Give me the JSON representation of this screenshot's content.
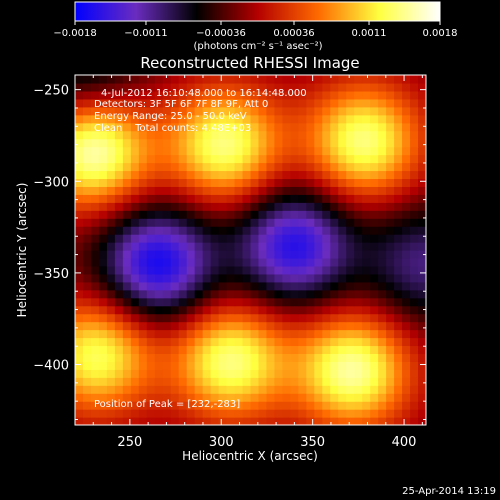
{
  "chart_data": {
    "type": "heatmap",
    "title": "Reconstructed RHESSI Image",
    "xlabel": "Heliocentric X (arcsec)",
    "ylabel": "Heliocentric Y (arcsec)",
    "xlim": [
      220,
      412
    ],
    "ylim": [
      -433,
      -242
    ],
    "xticks": [
      250,
      300,
      350,
      400
    ],
    "yticks": [
      -250,
      -300,
      -350,
      -400
    ],
    "xtick_labels": [
      "250",
      "300",
      "350",
      "400"
    ],
    "ytick_labels": [
      "−250",
      "−300",
      "−350",
      "−400"
    ],
    "colorbar": {
      "range": [
        -0.0018,
        0.0018
      ],
      "tick_labels": [
        "−0.0018",
        "−0.0011",
        "−0.00036",
        "0.00036",
        "0.0011",
        "0.0018"
      ],
      "tick_values": [
        -0.0018,
        -0.0011,
        -0.00036,
        0.00036,
        0.0011,
        0.0018
      ],
      "units_label": "(photons cm⁻² s⁻¹ asec⁻²)",
      "colors": [
        "#0000ff",
        "#6a2cbf",
        "#000000",
        "#b40000",
        "#ff6a00",
        "#ffff40",
        "#ffffff"
      ]
    },
    "annotations": [
      "4-Jul-2012 16:10:48.000 to 16:14:48.000",
      "Detectors: 3F 5F 6F 7F 8F 9F, Att 0",
      "Energy Range: 25.0 - 50.0 keV",
      "Clean    Total counts: 4.48E+03"
    ],
    "peak_label": "Position of Peak = [232,-283]",
    "sources": [
      {
        "x": 230,
        "y": -283,
        "value": 0.0018
      },
      {
        "x": 302,
        "y": -280,
        "value": 0.0016
      },
      {
        "x": 378,
        "y": -278,
        "value": 0.0016
      },
      {
        "x": 232,
        "y": -395,
        "value": 0.0015
      },
      {
        "x": 305,
        "y": -398,
        "value": 0.0016
      },
      {
        "x": 372,
        "y": -403,
        "value": 0.0017
      },
      {
        "x": 265,
        "y": -345,
        "value": -0.0015
      },
      {
        "x": 340,
        "y": -335,
        "value": -0.0014
      },
      {
        "x": 225,
        "y": -240,
        "value": -0.0007
      },
      {
        "x": 410,
        "y": -345,
        "value": -0.0008
      }
    ]
  },
  "footer": {
    "date_label": "25-Apr-2014 13:19"
  }
}
